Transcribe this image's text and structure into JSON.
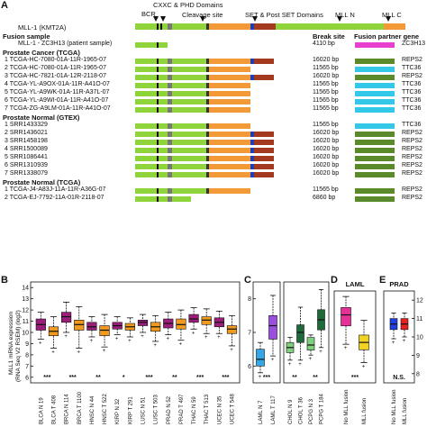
{
  "panelA": {
    "label": "A",
    "domain_labels": [
      "CXXC & PHD Domains",
      "BCR",
      "Cleavage site",
      "SET & Post SET Domains",
      "MLL N",
      "MLL C"
    ],
    "mll_label": "MLL-1 (KMT2A)",
    "headers": {
      "break": "Break site",
      "partner": "Fusion partner gene"
    },
    "sections": [
      {
        "title": "Fusion sample",
        "rows": [
          {
            "num": "",
            "name": "MLL-1 - ZC3H13 (patient sample)",
            "bp": "4110 bp",
            "partner": "ZC3H13",
            "color": "#e83fd0",
            "type": "short"
          }
        ]
      },
      {
        "title": "Prostate Cancer (TCGA)",
        "rows": [
          {
            "num": "1",
            "name": "TCGA-HC-7080-01A-11R-1965-07",
            "bp": "16020 bp",
            "partner": "REPS2",
            "color": "#5a8a2a",
            "type": "full"
          },
          {
            "num": "2",
            "name": "TCGA-HC-7080-01A-11R-1965-07",
            "bp": "11565 bp",
            "partner": "TTC36",
            "color": "#33c8e8",
            "type": "mid"
          },
          {
            "num": "3",
            "name": "TCGA-HC-7821-01A-12R-2118-07",
            "bp": "16020 bp",
            "partner": "REPS2",
            "color": "#5a8a2a",
            "type": "full"
          },
          {
            "num": "4",
            "name": "TCGA-YL-A9OX-01A-11R-A41O-07",
            "bp": "11565 bp",
            "partner": "TTC36",
            "color": "#33c8e8",
            "type": "mid"
          },
          {
            "num": "5",
            "name": "TCGA-YL-A9WK-01A-11R-A37L-07",
            "bp": "11565 bp",
            "partner": "TTC36",
            "color": "#33c8e8",
            "type": "mid"
          },
          {
            "num": "6",
            "name": "TCGA-YL-A9WI-01A-11R-A41O-07",
            "bp": "11565 bp",
            "partner": "TTC36",
            "color": "#33c8e8",
            "type": "mid"
          },
          {
            "num": "7",
            "name": "TCGA-ZG-A9LM-01A-11R-A41O-07",
            "bp": "11565 bp",
            "partner": "TTC36",
            "color": "#33c8e8",
            "type": "mid"
          }
        ]
      },
      {
        "title": "Prostate Normal (GTEX)",
        "rows": [
          {
            "num": "1",
            "name": "SRR1433329",
            "bp": "11565 bp",
            "partner": "TTC36",
            "color": "#33c8e8",
            "type": "mid"
          },
          {
            "num": "2",
            "name": "SRR1436021",
            "bp": "16020 bp",
            "partner": "REPS2",
            "color": "#5a8a2a",
            "type": "full"
          },
          {
            "num": "3",
            "name": "SRR1458198",
            "bp": "16020 bp",
            "partner": "REPS2",
            "color": "#5a8a2a",
            "type": "full"
          },
          {
            "num": "4",
            "name": "SRR1500089",
            "bp": "16020 bp",
            "partner": "REPS2",
            "color": "#5a8a2a",
            "type": "full"
          },
          {
            "num": "5",
            "name": "SRR1086441",
            "bp": "16020 bp",
            "partner": "REPS2",
            "color": "#5a8a2a",
            "type": "full"
          },
          {
            "num": "6",
            "name": "SRR1310939",
            "bp": "16020 bp",
            "partner": "REPS2",
            "color": "#5a8a2a",
            "type": "full"
          },
          {
            "num": "7",
            "name": "SRR1338079",
            "bp": "16020 bp",
            "partner": "REPS2",
            "color": "#5a8a2a",
            "type": "full"
          }
        ]
      },
      {
        "title": "Prostate Normal (TCGA)",
        "rows": [
          {
            "num": "1",
            "name": "TCGA-J4-A83J-11A-11R-A36G-07",
            "bp": "11565 bp",
            "partner": "REPS2",
            "color": "#5a8a2a",
            "type": "mid"
          },
          {
            "num": "2",
            "name": "TCGA-EJ-7792-11A-01R-2118-07",
            "bp": "6860 bp",
            "partner": "REPS2",
            "color": "#5a8a2a",
            "type": "short2"
          }
        ]
      }
    ]
  },
  "panelB": {
    "label": "B",
    "ylabel_line1": "MLL1 mRNA expression",
    "ylabel_line2": "(RNA Seq V2 RSEM) (log2)",
    "yticks": [
      "14",
      "13",
      "12",
      "11",
      "10",
      "9",
      "8",
      "7",
      "6"
    ],
    "ylim": [
      5.5,
      14.5
    ],
    "categories": [
      "BLCA N 19",
      "BLCA T 408",
      "BRCA N 114",
      "BRCA T 1100",
      "HNSC N 44",
      "HNSC T 522",
      "KIRP N 32",
      "KIRP T 291",
      "LUSC N 51",
      "LUSC T 503",
      "PRAD N 52",
      "PRAD T 497",
      "THAC N 59",
      "THAC T 513",
      "UCEC N 35",
      "UCEC T 548"
    ],
    "significance": [
      "***",
      "***",
      "**",
      "*",
      "***",
      "**",
      "***",
      "***"
    ],
    "boxes": [
      {
        "q1": 10.2,
        "med": 10.7,
        "q3": 11.2,
        "lo": 9.4,
        "hi": 11.8,
        "color": "#9b1f7a"
      },
      {
        "q1": 9.7,
        "med": 10.1,
        "q3": 10.5,
        "lo": 8.6,
        "hi": 11.4,
        "color": "#f29a1f"
      },
      {
        "q1": 10.9,
        "med": 11.4,
        "q3": 11.8,
        "lo": 10.0,
        "hi": 12.7,
        "color": "#9b1f7a"
      },
      {
        "q1": 10.2,
        "med": 10.7,
        "q3": 11.1,
        "lo": 8.6,
        "hi": 12.3,
        "color": "#f29a1f"
      },
      {
        "q1": 10.2,
        "med": 10.5,
        "q3": 10.9,
        "lo": 9.6,
        "hi": 11.4,
        "color": "#9b1f7a"
      },
      {
        "q1": 9.7,
        "med": 10.2,
        "q3": 10.6,
        "lo": 8.7,
        "hi": 11.6,
        "color": "#f29a1f"
      },
      {
        "q1": 10.3,
        "med": 10.6,
        "q3": 10.9,
        "lo": 9.8,
        "hi": 11.4,
        "color": "#9b1f7a"
      },
      {
        "q1": 10.2,
        "med": 10.5,
        "q3": 10.8,
        "lo": 9.6,
        "hi": 11.3,
        "color": "#f29a1f"
      },
      {
        "q1": 10.6,
        "med": 10.9,
        "q3": 11.1,
        "lo": 10.0,
        "hi": 11.6,
        "color": "#9b1f7a"
      },
      {
        "q1": 10.1,
        "med": 10.5,
        "q3": 10.9,
        "lo": 9.2,
        "hi": 11.5,
        "color": "#f29a1f"
      },
      {
        "q1": 10.4,
        "med": 10.8,
        "q3": 11.2,
        "lo": 9.8,
        "hi": 11.8,
        "color": "#9b1f7a"
      },
      {
        "q1": 10.3,
        "med": 10.7,
        "q3": 11.2,
        "lo": 9.3,
        "hi": 12.0,
        "color": "#f29a1f"
      },
      {
        "q1": 10.9,
        "med": 11.2,
        "q3": 11.6,
        "lo": 10.3,
        "hi": 12.2,
        "color": "#9b1f7a"
      },
      {
        "q1": 10.7,
        "med": 11.1,
        "q3": 11.4,
        "lo": 9.9,
        "hi": 12.1,
        "color": "#f29a1f"
      },
      {
        "q1": 10.5,
        "med": 10.9,
        "q3": 11.3,
        "lo": 9.9,
        "hi": 11.9,
        "color": "#9b1f7a"
      },
      {
        "q1": 9.9,
        "med": 10.3,
        "q3": 10.6,
        "lo": 8.8,
        "hi": 11.5,
        "color": "#f29a1f"
      }
    ]
  },
  "panelC": {
    "label": "C",
    "yticks": [
      "8",
      "7",
      "6"
    ],
    "ylim": [
      5.5,
      8.5
    ],
    "left": {
      "categories": [
        "LAML N 7",
        "LAML T 117"
      ],
      "significance": [
        "***"
      ],
      "boxes": [
        {
          "q1": 6.0,
          "med": 6.2,
          "q3": 6.5,
          "lo": 5.8,
          "hi": 6.7,
          "color": "#33a8e8"
        },
        {
          "q1": 6.8,
          "med": 7.2,
          "q3": 7.5,
          "lo": 6.3,
          "hi": 8.1,
          "color": "#9b4fe0"
        }
      ]
    },
    "right": {
      "yticks": [
        "12",
        "11",
        "10",
        "9"
      ],
      "ylim": [
        8.5,
        12.5
      ],
      "categories": [
        "CHOL N 9",
        "CHOL T 36",
        "PCPG N 3",
        "PCPG T 184"
      ],
      "significance": [
        "**",
        "**"
      ],
      "boxes": [
        {
          "q1": 9.7,
          "med": 9.9,
          "q3": 10.1,
          "lo": 9.4,
          "hi": 10.3,
          "color": "#7fd07f"
        },
        {
          "q1": 10.1,
          "med": 10.5,
          "q3": 10.8,
          "lo": 9.4,
          "hi": 11.5,
          "color": "#1f6a3a"
        },
        {
          "q1": 9.8,
          "med": 10.0,
          "q3": 10.3,
          "lo": 9.6,
          "hi": 10.4,
          "color": "#7fd07f"
        },
        {
          "q1": 10.6,
          "med": 11.0,
          "q3": 11.4,
          "lo": 9.9,
          "hi": 12.2,
          "color": "#1f6a3a"
        }
      ]
    }
  },
  "panelD": {
    "label": "D",
    "title": "LAML",
    "ylim": [
      7.5,
      12.5
    ],
    "categories": [
      "No MLL fusion",
      "MLL fusion"
    ],
    "significance": [
      "***"
    ],
    "boxes": [
      {
        "q1": 10.6,
        "med": 11.2,
        "q3": 11.6,
        "lo": 9.6,
        "hi": 12.2,
        "color": "#e8309a"
      },
      {
        "q1": 9.3,
        "med": 9.7,
        "q3": 10.1,
        "lo": 8.6,
        "hi": 10.9,
        "color": "#f2d31f"
      }
    ]
  },
  "panelE": {
    "label": "E",
    "title": "PRAD",
    "yticks": [
      "12",
      "11",
      "10",
      "9",
      "8"
    ],
    "ylim": [
      7.5,
      12.5
    ],
    "categories": [
      "No MLL fusion",
      "MLL fusion"
    ],
    "significance": [
      "N.S."
    ],
    "boxes": [
      {
        "q1": 10.4,
        "med": 10.7,
        "q3": 11.0,
        "lo": 9.9,
        "hi": 11.3,
        "color": "#1f3fe0"
      },
      {
        "q1": 10.4,
        "med": 10.7,
        "q3": 11.0,
        "lo": 10.0,
        "hi": 11.3,
        "color": "#e82020"
      }
    ]
  }
}
